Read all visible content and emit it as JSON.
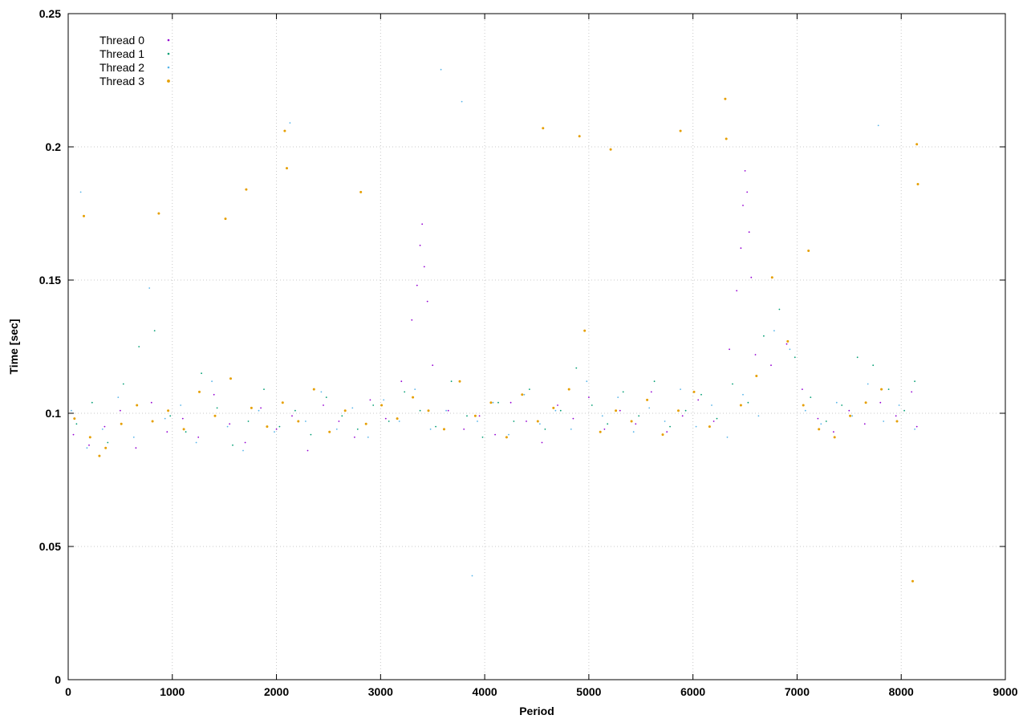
{
  "chart_data": {
    "type": "scatter",
    "title": "",
    "xlabel": "Period",
    "ylabel": "Time [sec]",
    "xlim": [
      0,
      9000
    ],
    "ylim": [
      0,
      0.25
    ],
    "x_ticks": [
      0,
      1000,
      2000,
      3000,
      4000,
      5000,
      6000,
      7000,
      8000,
      9000
    ],
    "y_ticks": [
      0,
      0.05,
      0.1,
      0.15,
      0.2,
      0.25
    ],
    "x_tick_labels": [
      "0",
      "1000",
      "2000",
      "3000",
      "4000",
      "5000",
      "6000",
      "7000",
      "8000",
      "9000"
    ],
    "y_tick_labels": [
      "0",
      "0.05",
      "0.1",
      "0.15",
      "0.2",
      "0.25"
    ],
    "grid": true,
    "legend_position": "top-left",
    "series": [
      {
        "name": "Thread 0",
        "color": "#9400d3",
        "points": [
          [
            50,
            0.092
          ],
          [
            200,
            0.088
          ],
          [
            350,
            0.095
          ],
          [
            500,
            0.101
          ],
          [
            650,
            0.087
          ],
          [
            800,
            0.104
          ],
          [
            950,
            0.093
          ],
          [
            1100,
            0.098
          ],
          [
            1250,
            0.091
          ],
          [
            1400,
            0.107
          ],
          [
            1550,
            0.096
          ],
          [
            1700,
            0.089
          ],
          [
            1850,
            0.102
          ],
          [
            2000,
            0.094
          ],
          [
            2150,
            0.099
          ],
          [
            2300,
            0.086
          ],
          [
            2450,
            0.103
          ],
          [
            2600,
            0.097
          ],
          [
            2750,
            0.091
          ],
          [
            2900,
            0.105
          ],
          [
            3050,
            0.098
          ],
          [
            3200,
            0.112
          ],
          [
            3300,
            0.135
          ],
          [
            3350,
            0.148
          ],
          [
            3380,
            0.163
          ],
          [
            3400,
            0.171
          ],
          [
            3420,
            0.155
          ],
          [
            3450,
            0.142
          ],
          [
            3500,
            0.118
          ],
          [
            3650,
            0.101
          ],
          [
            3800,
            0.094
          ],
          [
            3950,
            0.099
          ],
          [
            4100,
            0.092
          ],
          [
            4250,
            0.104
          ],
          [
            4400,
            0.097
          ],
          [
            4550,
            0.089
          ],
          [
            4700,
            0.103
          ],
          [
            4850,
            0.098
          ],
          [
            5000,
            0.106
          ],
          [
            5150,
            0.094
          ],
          [
            5300,
            0.101
          ],
          [
            5450,
            0.096
          ],
          [
            5600,
            0.108
          ],
          [
            5750,
            0.093
          ],
          [
            5900,
            0.099
          ],
          [
            6050,
            0.105
          ],
          [
            6200,
            0.097
          ],
          [
            6350,
            0.124
          ],
          [
            6420,
            0.146
          ],
          [
            6460,
            0.162
          ],
          [
            6480,
            0.178
          ],
          [
            6500,
            0.191
          ],
          [
            6520,
            0.183
          ],
          [
            6540,
            0.168
          ],
          [
            6560,
            0.151
          ],
          [
            6600,
            0.122
          ],
          [
            6750,
            0.118
          ],
          [
            6900,
            0.126
          ],
          [
            7050,
            0.109
          ],
          [
            7200,
            0.098
          ],
          [
            7350,
            0.093
          ],
          [
            7500,
            0.101
          ],
          [
            7650,
            0.096
          ],
          [
            7800,
            0.104
          ],
          [
            7950,
            0.099
          ],
          [
            8100,
            0.108
          ],
          [
            8150,
            0.095
          ]
        ]
      },
      {
        "name": "Thread 1",
        "color": "#009e73",
        "points": [
          [
            80,
            0.096
          ],
          [
            230,
            0.104
          ],
          [
            380,
            0.089
          ],
          [
            530,
            0.111
          ],
          [
            680,
            0.125
          ],
          [
            830,
            0.131
          ],
          [
            980,
            0.099
          ],
          [
            1130,
            0.093
          ],
          [
            1280,
            0.115
          ],
          [
            1430,
            0.102
          ],
          [
            1580,
            0.088
          ],
          [
            1730,
            0.097
          ],
          [
            1880,
            0.109
          ],
          [
            2030,
            0.095
          ],
          [
            2180,
            0.101
          ],
          [
            2330,
            0.092
          ],
          [
            2480,
            0.106
          ],
          [
            2630,
            0.099
          ],
          [
            2780,
            0.094
          ],
          [
            2930,
            0.103
          ],
          [
            3080,
            0.097
          ],
          [
            3230,
            0.108
          ],
          [
            3380,
            0.101
          ],
          [
            3530,
            0.095
          ],
          [
            3680,
            0.112
          ],
          [
            3830,
            0.099
          ],
          [
            3980,
            0.091
          ],
          [
            4130,
            0.104
          ],
          [
            4280,
            0.097
          ],
          [
            4430,
            0.109
          ],
          [
            4580,
            0.094
          ],
          [
            4730,
            0.101
          ],
          [
            4880,
            0.117
          ],
          [
            5030,
            0.103
          ],
          [
            5180,
            0.096
          ],
          [
            5330,
            0.108
          ],
          [
            5480,
            0.099
          ],
          [
            5630,
            0.112
          ],
          [
            5780,
            0.095
          ],
          [
            5930,
            0.101
          ],
          [
            6080,
            0.107
          ],
          [
            6230,
            0.098
          ],
          [
            6380,
            0.111
          ],
          [
            6530,
            0.104
          ],
          [
            6680,
            0.129
          ],
          [
            6830,
            0.139
          ],
          [
            6980,
            0.121
          ],
          [
            7130,
            0.106
          ],
          [
            7280,
            0.097
          ],
          [
            7430,
            0.103
          ],
          [
            7580,
            0.121
          ],
          [
            7730,
            0.118
          ],
          [
            7880,
            0.109
          ],
          [
            8030,
            0.101
          ],
          [
            8130,
            0.112
          ]
        ]
      },
      {
        "name": "Thread 2",
        "color": "#56b4e9",
        "points": [
          [
            30,
            0.101
          ],
          [
            120,
            0.183
          ],
          [
            180,
            0.087
          ],
          [
            330,
            0.094
          ],
          [
            480,
            0.106
          ],
          [
            630,
            0.091
          ],
          [
            780,
            0.147
          ],
          [
            930,
            0.098
          ],
          [
            1080,
            0.103
          ],
          [
            1230,
            0.089
          ],
          [
            1380,
            0.112
          ],
          [
            1530,
            0.095
          ],
          [
            1680,
            0.086
          ],
          [
            1830,
            0.101
          ],
          [
            1980,
            0.093
          ],
          [
            2130,
            0.209
          ],
          [
            2280,
            0.097
          ],
          [
            2430,
            0.108
          ],
          [
            2580,
            0.094
          ],
          [
            2730,
            0.102
          ],
          [
            2880,
            0.091
          ],
          [
            3030,
            0.105
          ],
          [
            3180,
            0.097
          ],
          [
            3330,
            0.109
          ],
          [
            3480,
            0.094
          ],
          [
            3580,
            0.229
          ],
          [
            3630,
            0.101
          ],
          [
            3780,
            0.217
          ],
          [
            3880,
            0.039
          ],
          [
            3930,
            0.097
          ],
          [
            4080,
            0.104
          ],
          [
            4230,
            0.092
          ],
          [
            4380,
            0.107
          ],
          [
            4530,
            0.096
          ],
          [
            4680,
            0.101
          ],
          [
            4830,
            0.094
          ],
          [
            4980,
            0.112
          ],
          [
            5130,
            0.099
          ],
          [
            5280,
            0.106
          ],
          [
            5430,
            0.093
          ],
          [
            5580,
            0.102
          ],
          [
            5730,
            0.097
          ],
          [
            5880,
            0.109
          ],
          [
            6030,
            0.095
          ],
          [
            6180,
            0.103
          ],
          [
            6330,
            0.091
          ],
          [
            6480,
            0.107
          ],
          [
            6630,
            0.099
          ],
          [
            6780,
            0.131
          ],
          [
            6930,
            0.124
          ],
          [
            7080,
            0.101
          ],
          [
            7230,
            0.096
          ],
          [
            7380,
            0.104
          ],
          [
            7530,
            0.099
          ],
          [
            7680,
            0.111
          ],
          [
            7780,
            0.208
          ],
          [
            7830,
            0.097
          ],
          [
            7980,
            0.103
          ],
          [
            8130,
            0.094
          ]
        ]
      },
      {
        "name": "Thread 3",
        "color": "#e69f00",
        "points": [
          [
            60,
            0.098
          ],
          [
            150,
            0.174
          ],
          [
            210,
            0.091
          ],
          [
            300,
            0.084
          ],
          [
            360,
            0.087
          ],
          [
            510,
            0.096
          ],
          [
            660,
            0.103
          ],
          [
            810,
            0.097
          ],
          [
            870,
            0.175
          ],
          [
            960,
            0.101
          ],
          [
            1110,
            0.094
          ],
          [
            1260,
            0.108
          ],
          [
            1410,
            0.099
          ],
          [
            1510,
            0.173
          ],
          [
            1560,
            0.113
          ],
          [
            1710,
            0.184
          ],
          [
            1760,
            0.102
          ],
          [
            1910,
            0.095
          ],
          [
            2060,
            0.104
          ],
          [
            2080,
            0.206
          ],
          [
            2100,
            0.192
          ],
          [
            2210,
            0.097
          ],
          [
            2360,
            0.109
          ],
          [
            2510,
            0.093
          ],
          [
            2660,
            0.101
          ],
          [
            2810,
            0.183
          ],
          [
            2860,
            0.096
          ],
          [
            3010,
            0.103
          ],
          [
            3160,
            0.098
          ],
          [
            3310,
            0.106
          ],
          [
            3460,
            0.101
          ],
          [
            3610,
            0.094
          ],
          [
            3760,
            0.112
          ],
          [
            3910,
            0.099
          ],
          [
            4060,
            0.104
          ],
          [
            4210,
            0.091
          ],
          [
            4360,
            0.107
          ],
          [
            4510,
            0.097
          ],
          [
            4560,
            0.207
          ],
          [
            4660,
            0.102
          ],
          [
            4810,
            0.109
          ],
          [
            4910,
            0.204
          ],
          [
            4960,
            0.131
          ],
          [
            5110,
            0.093
          ],
          [
            5210,
            0.199
          ],
          [
            5260,
            0.101
          ],
          [
            5410,
            0.097
          ],
          [
            5560,
            0.105
          ],
          [
            5710,
            0.092
          ],
          [
            5860,
            0.101
          ],
          [
            5880,
            0.206
          ],
          [
            6010,
            0.108
          ],
          [
            6160,
            0.095
          ],
          [
            6310,
            0.218
          ],
          [
            6320,
            0.203
          ],
          [
            6460,
            0.103
          ],
          [
            6610,
            0.114
          ],
          [
            6760,
            0.151
          ],
          [
            6910,
            0.127
          ],
          [
            7060,
            0.103
          ],
          [
            7110,
            0.161
          ],
          [
            7210,
            0.094
          ],
          [
            7360,
            0.091
          ],
          [
            7510,
            0.099
          ],
          [
            7660,
            0.104
          ],
          [
            7810,
            0.109
          ],
          [
            7960,
            0.097
          ],
          [
            8110,
            0.037
          ],
          [
            8150,
            0.201
          ],
          [
            8160,
            0.186
          ]
        ]
      }
    ]
  }
}
